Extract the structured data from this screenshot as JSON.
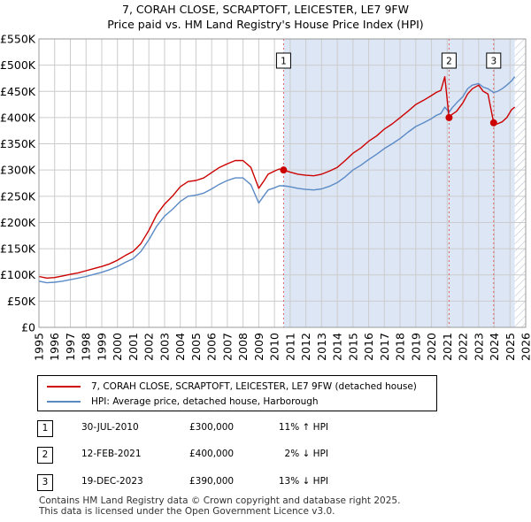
{
  "title_line1": "7, CORAH CLOSE, SCRAPTOFT, LEICESTER, LE7 9FW",
  "title_line2": "Price paid vs. HM Land Registry's House Price Index (HPI)",
  "colors": {
    "property": "#cc0000",
    "hpi": "#5a8ac6",
    "shade": "#dde6f5",
    "grid": "#cccccc",
    "marker": "#cc0000",
    "vline": "#e06060"
  },
  "chart_data": {
    "type": "line",
    "x_range": [
      1995,
      2026
    ],
    "y_range": [
      0,
      550000
    ],
    "x_ticks": [
      "1995",
      "1996",
      "1997",
      "1998",
      "1999",
      "2000",
      "2001",
      "2002",
      "2003",
      "2004",
      "2005",
      "2006",
      "2007",
      "2008",
      "2009",
      "2010",
      "2011",
      "2012",
      "2013",
      "2014",
      "2015",
      "2016",
      "2017",
      "2018",
      "2019",
      "2020",
      "2021",
      "2022",
      "2023",
      "2024",
      "2025",
      "2026"
    ],
    "y_ticks": [
      {
        "value": 0,
        "label": "£0"
      },
      {
        "value": 50000,
        "label": "£50K"
      },
      {
        "value": 100000,
        "label": "£100K"
      },
      {
        "value": 150000,
        "label": "£150K"
      },
      {
        "value": 200000,
        "label": "£200K"
      },
      {
        "value": 250000,
        "label": "£250K"
      },
      {
        "value": 300000,
        "label": "£300K"
      },
      {
        "value": 350000,
        "label": "£350K"
      },
      {
        "value": 400000,
        "label": "£400K"
      },
      {
        "value": 450000,
        "label": "£450K"
      },
      {
        "value": 500000,
        "label": "£500K"
      },
      {
        "value": 550000,
        "label": "£550K"
      }
    ],
    "shaded_period": {
      "from": 2010.58,
      "to": 2025.3
    },
    "hatched_period": {
      "from": 2025.3,
      "to": 2026
    },
    "series": [
      {
        "name": "7, CORAH CLOSE, SCRAPTOFT, LEICESTER, LE7 9FW (detached house)",
        "x": [
          1995.0,
          1995.5,
          1996.0,
          1996.5,
          1997.0,
          1997.5,
          1998.0,
          1998.5,
          1999.0,
          1999.5,
          2000.0,
          2000.5,
          2001.0,
          2001.5,
          2002.0,
          2002.5,
          2003.0,
          2003.5,
          2004.0,
          2004.5,
          2005.0,
          2005.5,
          2006.0,
          2006.5,
          2007.0,
          2007.5,
          2008.0,
          2008.5,
          2009.0,
          2009.3,
          2009.6,
          2010.0,
          2010.3,
          2010.58,
          2011.0,
          2011.5,
          2012.0,
          2012.5,
          2013.0,
          2013.5,
          2014.0,
          2014.5,
          2015.0,
          2015.5,
          2016.0,
          2016.5,
          2017.0,
          2017.5,
          2018.0,
          2018.5,
          2019.0,
          2019.5,
          2020.0,
          2020.3,
          2020.6,
          2020.85,
          2021.12,
          2021.3,
          2021.6,
          2022.0,
          2022.3,
          2022.6,
          2023.0,
          2023.3,
          2023.6,
          2023.96,
          2024.2,
          2024.5,
          2024.8,
          2025.1,
          2025.3
        ],
        "y": [
          97000,
          94000,
          95000,
          98000,
          101000,
          104000,
          108000,
          112000,
          116000,
          121000,
          128000,
          137000,
          145000,
          160000,
          185000,
          215000,
          235000,
          250000,
          268000,
          278000,
          280000,
          285000,
          295000,
          305000,
          312000,
          318000,
          318000,
          305000,
          265000,
          278000,
          292000,
          298000,
          302000,
          300000,
          296000,
          292000,
          290000,
          289000,
          292000,
          298000,
          305000,
          318000,
          332000,
          342000,
          355000,
          365000,
          378000,
          388000,
          400000,
          412000,
          425000,
          433000,
          442000,
          448000,
          452000,
          478000,
          400000,
          406000,
          412000,
          428000,
          445000,
          455000,
          462000,
          450000,
          445000,
          390000,
          388000,
          392000,
          400000,
          415000,
          420000
        ]
      },
      {
        "name": "HPI: Average price, detached house, Harborough",
        "x": [
          1995.0,
          1995.5,
          1996.0,
          1996.5,
          1997.0,
          1997.5,
          1998.0,
          1998.5,
          1999.0,
          1999.5,
          2000.0,
          2000.5,
          2001.0,
          2001.5,
          2002.0,
          2002.5,
          2003.0,
          2003.5,
          2004.0,
          2004.5,
          2005.0,
          2005.5,
          2006.0,
          2006.5,
          2007.0,
          2007.5,
          2008.0,
          2008.5,
          2009.0,
          2009.3,
          2009.6,
          2010.0,
          2010.3,
          2010.58,
          2011.0,
          2011.5,
          2012.0,
          2012.5,
          2013.0,
          2013.5,
          2014.0,
          2014.5,
          2015.0,
          2015.5,
          2016.0,
          2016.5,
          2017.0,
          2017.5,
          2018.0,
          2018.5,
          2019.0,
          2019.5,
          2020.0,
          2020.3,
          2020.6,
          2020.85,
          2021.12,
          2021.3,
          2021.6,
          2022.0,
          2022.3,
          2022.6,
          2023.0,
          2023.3,
          2023.6,
          2023.96,
          2024.2,
          2024.5,
          2024.8,
          2025.1,
          2025.3
        ],
        "y": [
          88000,
          85000,
          86000,
          88000,
          91000,
          94000,
          97000,
          101000,
          105000,
          110000,
          116000,
          124000,
          131000,
          145000,
          167000,
          193000,
          212000,
          225000,
          240000,
          250000,
          252000,
          256000,
          264000,
          273000,
          280000,
          285000,
          285000,
          272000,
          237000,
          250000,
          262000,
          266000,
          270000,
          270000,
          268000,
          265000,
          263000,
          262000,
          264000,
          269000,
          276000,
          287000,
          300000,
          309000,
          320000,
          330000,
          341000,
          350000,
          360000,
          372000,
          383000,
          390000,
          398000,
          404000,
          408000,
          420000,
          410000,
          418000,
          428000,
          440000,
          455000,
          462000,
          465000,
          458000,
          455000,
          448000,
          450000,
          455000,
          462000,
          470000,
          478000
        ]
      }
    ],
    "sales": [
      {
        "label": "1",
        "x": 2010.58,
        "y": 300000
      },
      {
        "label": "2",
        "x": 2021.12,
        "y": 400000
      },
      {
        "label": "3",
        "x": 2023.96,
        "y": 390000
      }
    ]
  },
  "legend": {
    "property_label": "7, CORAH CLOSE, SCRAPTOFT, LEICESTER, LE7 9FW (detached house)",
    "hpi_label": "HPI: Average price, detached house, Harborough"
  },
  "sales_table": [
    {
      "num": "1",
      "date": "30-JUL-2010",
      "price": "£300,000",
      "hpi": "11% ↑ HPI"
    },
    {
      "num": "2",
      "date": "12-FEB-2021",
      "price": "£400,000",
      "hpi": "2% ↓ HPI"
    },
    {
      "num": "3",
      "date": "19-DEC-2023",
      "price": "£390,000",
      "hpi": "13% ↓ HPI"
    }
  ],
  "footer_line1": "Contains HM Land Registry data © Crown copyright and database right 2025.",
  "footer_line2": "This data is licensed under the Open Government Licence v3.0."
}
